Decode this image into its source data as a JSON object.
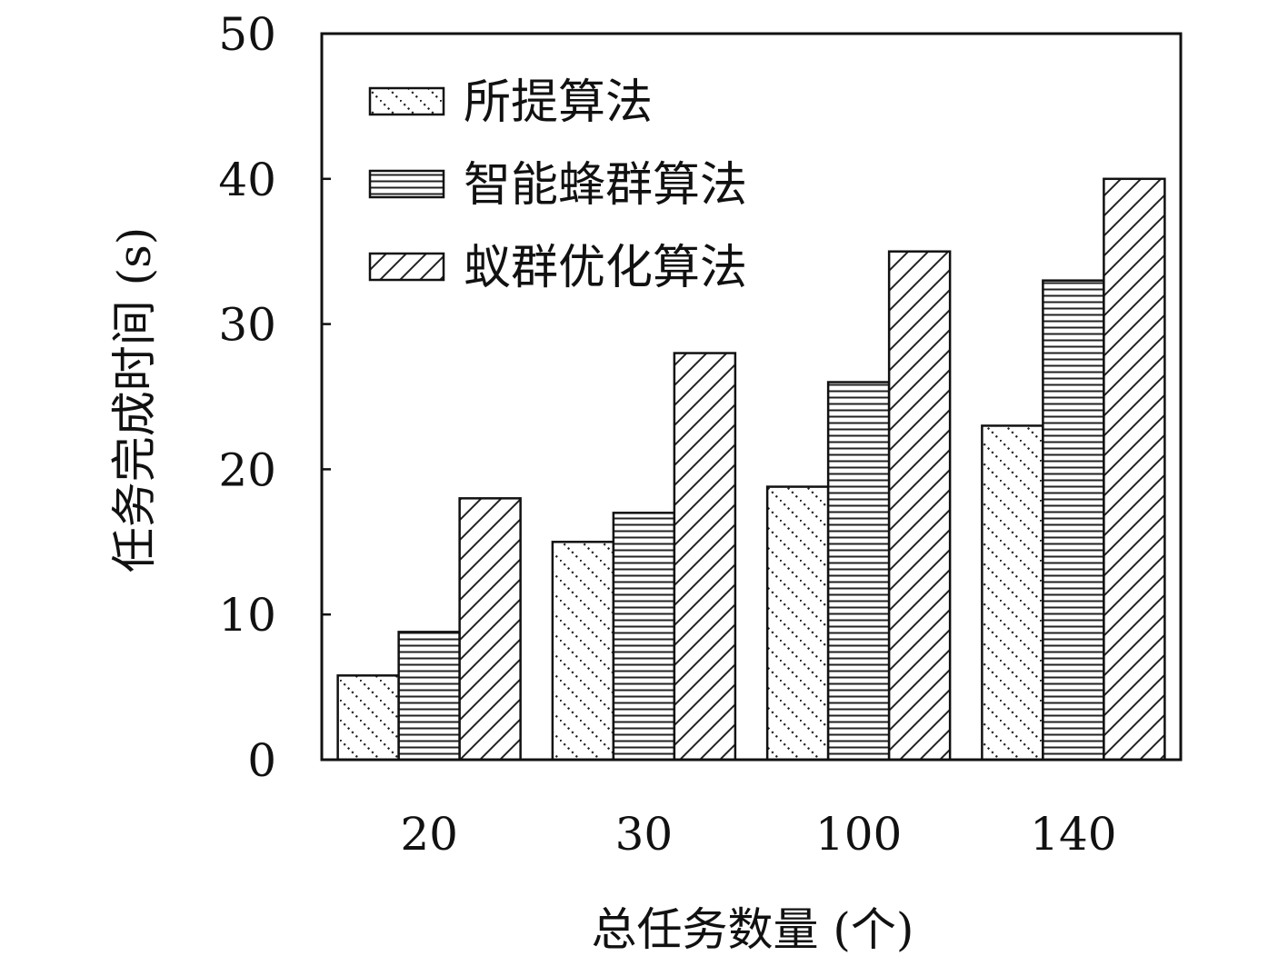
{
  "chart_data": {
    "type": "bar",
    "title": "",
    "xlabel": "总任务数量 (个)",
    "ylabel": "任务完成时间 (s)",
    "categories": [
      "20",
      "30",
      "100",
      "140"
    ],
    "ylim": [
      0,
      50
    ],
    "yticks": [
      "0",
      "10",
      "20",
      "30",
      "40",
      "50"
    ],
    "legend_position": "top-left",
    "grid": false,
    "series": [
      {
        "name": "所提算法",
        "pattern": "dotted-diagonal",
        "values": [
          5.8,
          15.0,
          18.8,
          23.0
        ]
      },
      {
        "name": "智能蜂群算法",
        "pattern": "horizontal-lines",
        "values": [
          8.8,
          17.0,
          26.0,
          33.0
        ]
      },
      {
        "name": "蚁群优化算法",
        "pattern": "forward-diagonal",
        "values": [
          18.0,
          28.0,
          35.0,
          40.0
        ]
      }
    ]
  }
}
